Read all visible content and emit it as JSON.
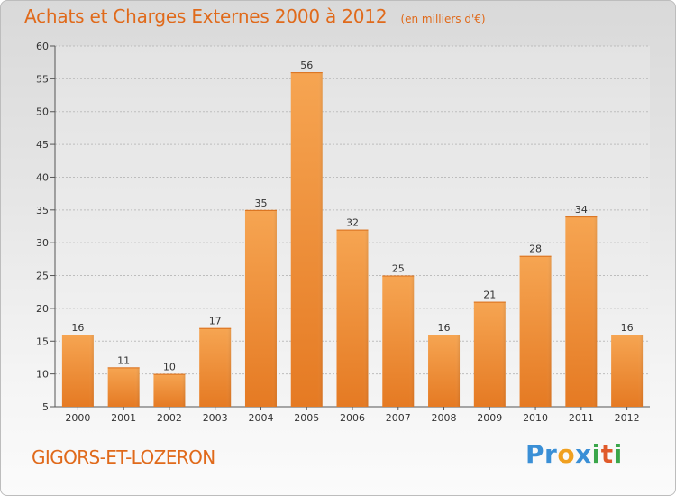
{
  "chart_data": {
    "type": "bar",
    "title": "Achats et Charges Externes 2000 à 2012",
    "subtitle": "(en milliers d'€)",
    "categories": [
      "2000",
      "2001",
      "2002",
      "2003",
      "2004",
      "2005",
      "2006",
      "2007",
      "2008",
      "2009",
      "2010",
      "2011",
      "2012"
    ],
    "values": [
      16,
      11,
      10,
      17,
      35,
      56,
      32,
      25,
      16,
      21,
      28,
      34,
      16
    ],
    "value_labels": [
      "16",
      "11",
      "10",
      "17",
      "35",
      "56",
      "32",
      "25",
      "16",
      "21",
      "28",
      "34",
      "16"
    ],
    "ylim": [
      5,
      60
    ],
    "yticks": [
      5,
      10,
      15,
      20,
      25,
      30,
      35,
      40,
      45,
      50,
      55,
      60
    ],
    "ytick_labels": [
      "5",
      "10",
      "15",
      "20",
      "25",
      "30",
      "35",
      "40",
      "45",
      "50",
      "55",
      "60"
    ],
    "grid": true,
    "bar_color": "#f0a04b"
  },
  "footer": {
    "place": "GIGORS-ET-LOZERON",
    "logo_letters": [
      "P",
      "r",
      "o",
      "x",
      "i",
      "t",
      "i"
    ]
  }
}
